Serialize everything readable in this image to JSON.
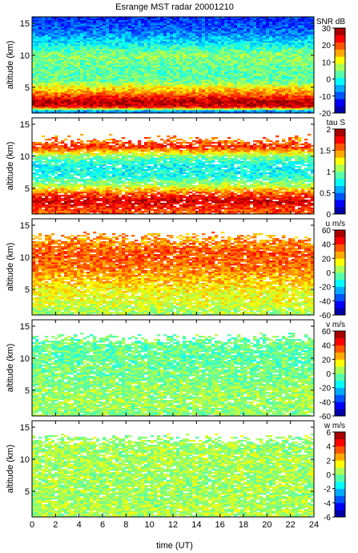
{
  "chart_data": {
    "type": "heatmap",
    "title": "Esrange MST radar 20001210",
    "xlabel": "time (UT)",
    "xlim": [
      0,
      24
    ],
    "x_ticks": [
      0,
      2,
      4,
      6,
      8,
      10,
      12,
      14,
      16,
      18,
      20,
      22,
      24
    ],
    "colormap": "jet",
    "panels": [
      {
        "id": "snr",
        "ylabel": "altitude (km)",
        "ylim": [
          1,
          16
        ],
        "y_ticks": [
          5,
          10,
          15
        ],
        "colorbar_label": "SNR dB",
        "clim": [
          -20,
          30
        ],
        "colorbar_ticks": [
          -20,
          -10,
          0,
          10,
          20,
          30
        ],
        "altitude_profile": [
          {
            "alt": 1.3,
            "value": -8
          },
          {
            "alt": 2.0,
            "value": 26
          },
          {
            "alt": 3.0,
            "value": 27
          },
          {
            "alt": 4.0,
            "value": 18
          },
          {
            "alt": 5.0,
            "value": 12
          },
          {
            "alt": 6.0,
            "value": 4
          },
          {
            "alt": 8.0,
            "value": 3
          },
          {
            "alt": 10.0,
            "value": 6
          },
          {
            "alt": 12.0,
            "value": -2
          },
          {
            "alt": 14.0,
            "value": -9
          },
          {
            "alt": 16.0,
            "value": -12
          }
        ]
      },
      {
        "id": "tau",
        "ylabel": "altitude (km)",
        "ylim": [
          1,
          16
        ],
        "y_ticks": [
          5,
          10,
          15
        ],
        "colorbar_label": "tau S",
        "clim": [
          0,
          2
        ],
        "colorbar_ticks": [
          0,
          0.5,
          1,
          1.5,
          2
        ],
        "altitude_profile": [
          {
            "alt": 1.5,
            "value": 1.6
          },
          {
            "alt": 3.0,
            "value": 1.85
          },
          {
            "alt": 4.2,
            "value": 1.6
          },
          {
            "alt": 5.5,
            "value": 1.1
          },
          {
            "alt": 7.0,
            "value": 0.8
          },
          {
            "alt": 8.5,
            "value": 0.75
          },
          {
            "alt": 10.0,
            "value": 1.0
          },
          {
            "alt": 11.5,
            "value": 1.7
          },
          {
            "alt": 12.5,
            "value": 1.5
          }
        ]
      },
      {
        "id": "u",
        "ylabel": "altitude (km)",
        "ylim": [
          1,
          16
        ],
        "y_ticks": [
          5,
          10,
          15
        ],
        "colorbar_label": "u m/s",
        "clim": [
          -60,
          60
        ],
        "colorbar_ticks": [
          -60,
          -40,
          -20,
          0,
          20,
          40,
          60
        ],
        "altitude_profile": [
          {
            "alt": 1.5,
            "value": 5
          },
          {
            "alt": 3.0,
            "value": 12
          },
          {
            "alt": 5.0,
            "value": 15
          },
          {
            "alt": 7.0,
            "value": 25
          },
          {
            "alt": 9.0,
            "value": 33
          },
          {
            "alt": 10.5,
            "value": 36
          },
          {
            "alt": 12.0,
            "value": 30
          },
          {
            "alt": 13.0,
            "value": 28
          }
        ]
      },
      {
        "id": "v",
        "ylabel": "altitude (km)",
        "ylim": [
          1,
          16
        ],
        "y_ticks": [
          5,
          10,
          15
        ],
        "colorbar_label": "v m/s",
        "clim": [
          -60,
          60
        ],
        "colorbar_ticks": [
          -60,
          -40,
          -20,
          0,
          20,
          40,
          60
        ],
        "altitude_profile": [
          {
            "alt": 1.5,
            "value": 2
          },
          {
            "alt": 4.0,
            "value": 4
          },
          {
            "alt": 7.0,
            "value": 0
          },
          {
            "alt": 10.0,
            "value": -3
          },
          {
            "alt": 13.0,
            "value": -2
          }
        ]
      },
      {
        "id": "w",
        "ylabel": "altitude (km)",
        "ylim": [
          1,
          16
        ],
        "y_ticks": [
          5,
          10,
          15
        ],
        "colorbar_label": "w m/s",
        "clim": [
          -6,
          6
        ],
        "colorbar_ticks": [
          -6,
          -4,
          -2,
          0,
          2,
          4,
          6
        ],
        "altitude_profile": [
          {
            "alt": 1.5,
            "value": 0.6
          },
          {
            "alt": 5.0,
            "value": 0.4
          },
          {
            "alt": 9.0,
            "value": 0.5
          },
          {
            "alt": 13.0,
            "value": 0.4
          }
        ]
      }
    ]
  }
}
